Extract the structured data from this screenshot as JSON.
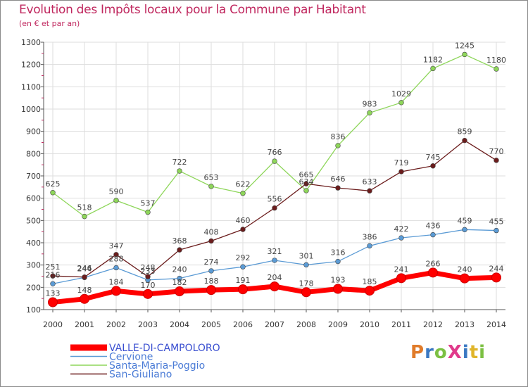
{
  "header": {
    "title": "Evolution des Impôts locaux pour la Commune par Habitant",
    "subtitle": "(en € et par an)"
  },
  "logo": {
    "text": "ProXiti",
    "colors": [
      "#e07b2a",
      "#3a78c2",
      "#7cc043",
      "#e03a8b",
      "#3a78c2",
      "#e0b52a",
      "#7cc043"
    ]
  },
  "chart_data": {
    "type": "line",
    "title": "Evolution des Impôts locaux pour la Commune par Habitant",
    "subtitle": "(en € et par an)",
    "xlabel": "",
    "ylabel": "",
    "x": [
      "2000",
      "2001",
      "2002",
      "2003",
      "2004",
      "2005",
      "2006",
      "2007",
      "2008",
      "2009",
      "2010",
      "2011",
      "2012",
      "2013",
      "2014"
    ],
    "ylim": [
      100,
      1300
    ],
    "yticks": [
      100,
      200,
      300,
      400,
      500,
      600,
      700,
      800,
      900,
      1000,
      1100,
      1200,
      1300
    ],
    "grid": true,
    "legend_position": "bottom-left",
    "series": [
      {
        "name": "VALLE-DI-CAMPOLORO",
        "color": "#ff0000",
        "emphasis": true,
        "values": [
          133,
          148,
          184,
          170,
          182,
          188,
          191,
          204,
          178,
          193,
          185,
          241,
          266,
          240,
          244
        ],
        "labels": [
          "133",
          "148",
          "184",
          "170",
          "182",
          "188",
          "191",
          "204",
          "178",
          "193",
          "185",
          "241",
          "266",
          "240",
          "244"
        ]
      },
      {
        "name": "Cervione",
        "color": "#5b9bd5",
        "values": [
          216,
          244,
          288,
          233,
          240,
          274,
          292,
          321,
          301,
          316,
          386,
          422,
          436,
          459,
          455
        ],
        "labels": [
          "216",
          "244",
          "288",
          "233",
          "240",
          "274",
          "292",
          "321",
          "301",
          "316",
          "386",
          "422",
          "436",
          "459",
          "455"
        ]
      },
      {
        "name": "Santa-Maria-Poggio",
        "color": "#8ed65a",
        "values": [
          625,
          518,
          590,
          537,
          722,
          653,
          622,
          766,
          634,
          836,
          983,
          1029,
          1182,
          1245,
          1180
        ],
        "labels": [
          "625",
          "518",
          "590",
          "537",
          "722",
          "653",
          "622",
          "766",
          "634",
          "836",
          "983",
          "1029",
          "1182",
          "1245",
          "1180"
        ]
      },
      {
        "name": "San-Giuliano",
        "color": "#6b1c1c",
        "values": [
          251,
          246,
          347,
          248,
          368,
          408,
          460,
          556,
          665,
          646,
          633,
          719,
          745,
          859,
          770
        ],
        "labels": [
          "251",
          "246",
          "347",
          "248",
          "368",
          "408",
          "460",
          "556",
          "665",
          "646",
          "633",
          "719",
          "745",
          "859",
          "770"
        ]
      }
    ]
  }
}
